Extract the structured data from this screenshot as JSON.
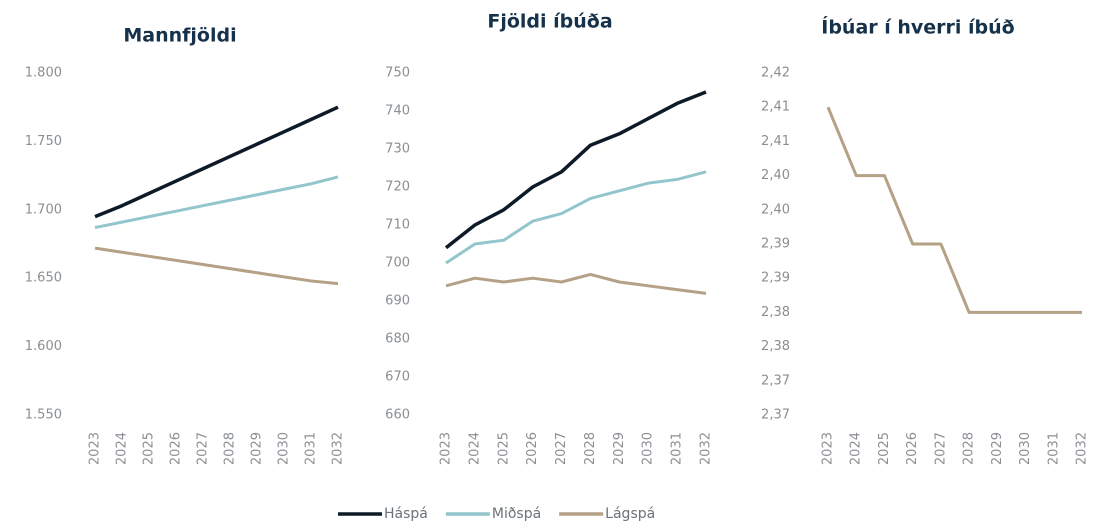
{
  "chart_data": [
    {
      "type": "line",
      "title": "Mannfjöldi",
      "categories": [
        "2023",
        "2024",
        "2025",
        "2026",
        "2027",
        "2028",
        "2029",
        "2030",
        "2031",
        "2032"
      ],
      "series": [
        {
          "name": "Háspá",
          "color": "#0f1a28",
          "values": [
            1695,
            1703,
            1712,
            1721,
            1730,
            1739,
            1748,
            1757,
            1766,
            1775
          ]
        },
        {
          "name": "Miðspá",
          "color": "#92c6cc",
          "values": [
            1687,
            1691,
            1695,
            1699,
            1703,
            1707,
            1711,
            1715,
            1719,
            1724
          ]
        },
        {
          "name": "Lágspá",
          "color": "#b4a186",
          "values": [
            1672,
            1669,
            1666,
            1663,
            1660,
            1657,
            1654,
            1651,
            1648,
            1646
          ]
        }
      ],
      "ylim": [
        1550,
        1800
      ],
      "yticks": [
        {
          "value": 1550,
          "label": "1.550"
        },
        {
          "value": 1600,
          "label": "1.600"
        },
        {
          "value": 1650,
          "label": "1.650"
        },
        {
          "value": 1700,
          "label": "1.700"
        },
        {
          "value": 1750,
          "label": "1.750"
        },
        {
          "value": 1800,
          "label": "1.800"
        }
      ]
    },
    {
      "type": "line",
      "title": "Fjöldi íbúða",
      "categories": [
        "2023",
        "2024",
        "2025",
        "2026",
        "2027",
        "2028",
        "2029",
        "2030",
        "2031",
        "2032"
      ],
      "series": [
        {
          "color": "#0f1a28",
          "values": [
            704,
            710,
            714,
            720,
            724,
            731,
            734,
            738,
            742,
            745
          ]
        },
        {
          "color": "#92c6cc",
          "values": [
            700,
            705,
            706,
            711,
            713,
            717,
            719,
            721,
            722,
            724
          ]
        },
        {
          "color": "#b4a186",
          "values": [
            694,
            696,
            695,
            696,
            695,
            697,
            695,
            694,
            693,
            692
          ]
        }
      ],
      "ylim": [
        660,
        750
      ],
      "yticks": [
        660,
        670,
        680,
        690,
        700,
        710,
        720,
        730,
        740,
        750
      ]
    },
    {
      "type": "step",
      "title": "Íbúar í hverri íbúð",
      "categories": [
        "2023",
        "2024",
        "2025",
        "2026",
        "2027",
        "2028",
        "2029",
        "2030",
        "2031",
        "2032"
      ],
      "series": [
        {
          "color": "#b4a186",
          "values": [
            2.415,
            2.405,
            2.405,
            2.395,
            2.395,
            2.385,
            2.385,
            2.385,
            2.385,
            2.385
          ]
        }
      ],
      "ylim": [
        2.37,
        2.42
      ],
      "yticks": [
        {
          "value": 2.37,
          "label": "2,37"
        },
        {
          "value": 2.375,
          "label": "2,37"
        },
        {
          "value": 2.38,
          "label": "2,38"
        },
        {
          "value": 2.385,
          "label": "2,38"
        },
        {
          "value": 2.39,
          "label": "2,39"
        },
        {
          "value": 2.395,
          "label": "2,39"
        },
        {
          "value": 2.4,
          "label": "2,40"
        },
        {
          "value": 2.405,
          "label": "2,40"
        },
        {
          "value": 2.41,
          "label": "2,41"
        },
        {
          "value": 2.415,
          "label": "2,41"
        },
        {
          "value": 2.42,
          "label": "2,42"
        }
      ]
    }
  ]
}
